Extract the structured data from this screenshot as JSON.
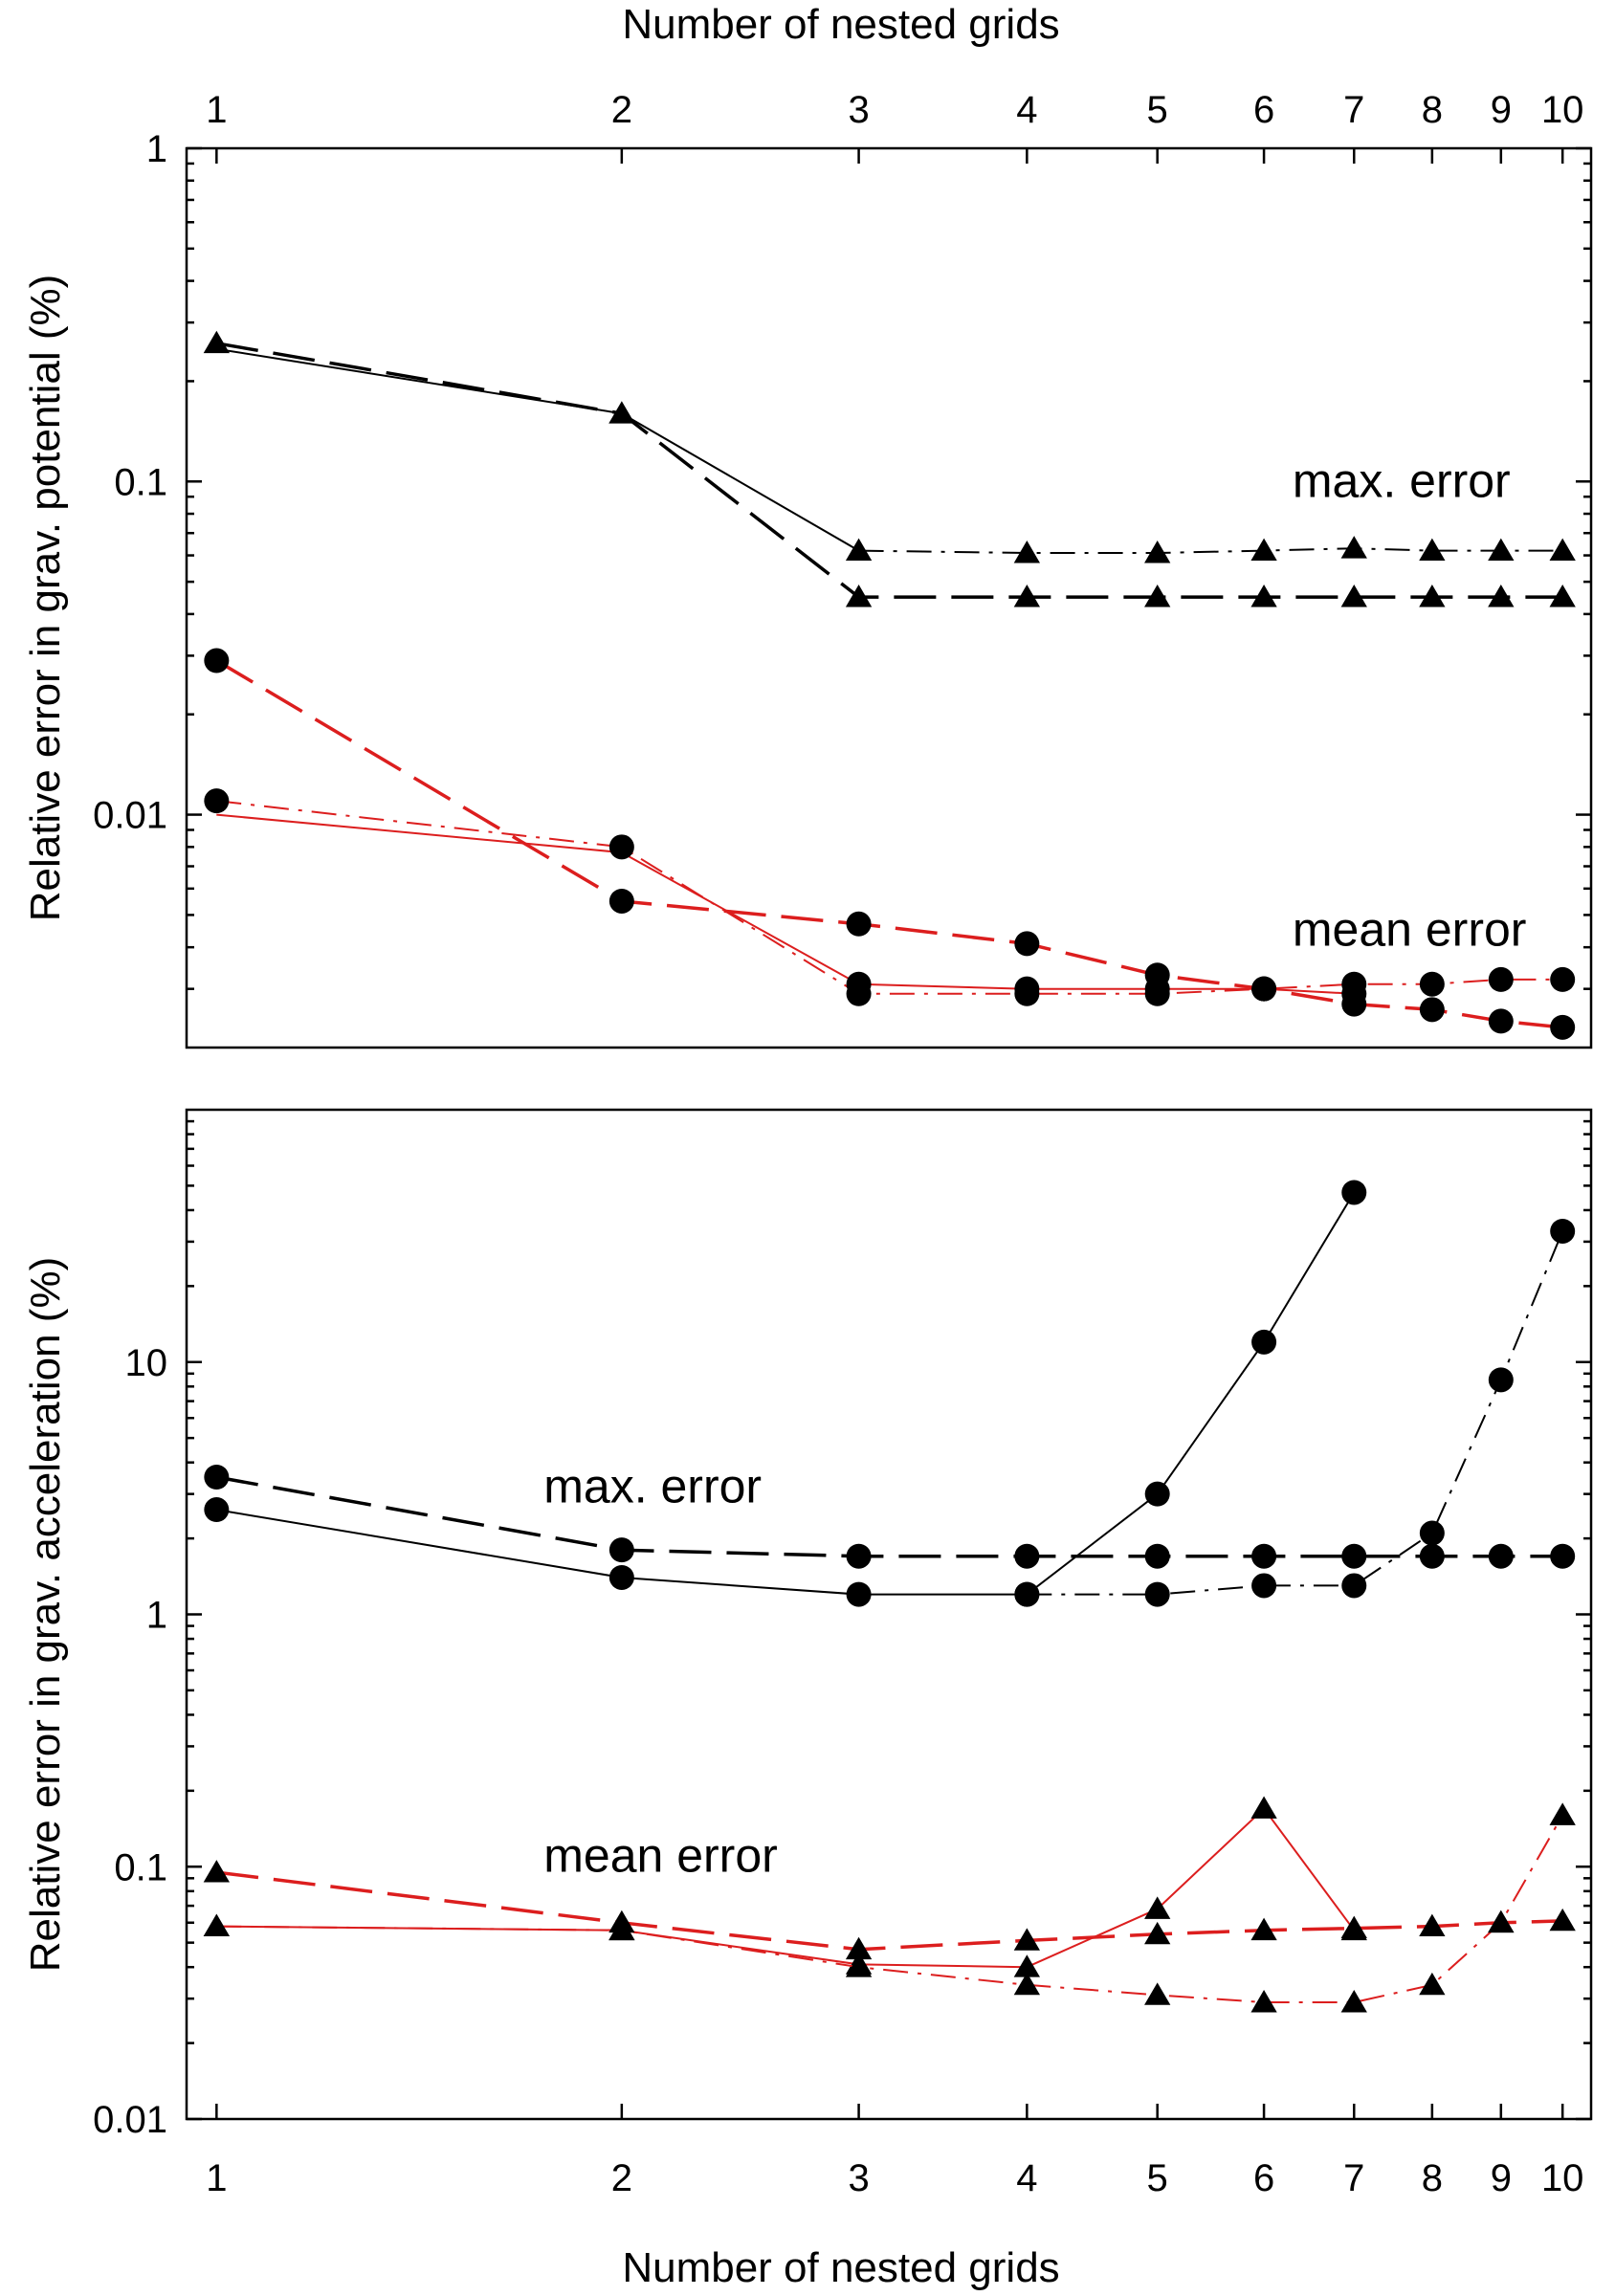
{
  "chart_data": [
    {
      "type": "line",
      "xscale": "log",
      "yscale": "log",
      "x": [
        1,
        2,
        3,
        4,
        5,
        6,
        7,
        8,
        9,
        10
      ],
      "xlim": [
        0.95,
        10.5
      ],
      "ylim": [
        0.002,
        1
      ],
      "xlabel": "Number of nested grids",
      "xlabel_position": "top",
      "ylabel": "Relative error in grav. potential (%)",
      "x_tick_labels": [
        "1",
        "2",
        "3",
        "4",
        "5",
        "6",
        "7",
        "8",
        "9",
        "10"
      ],
      "y_ticks": [
        0.01,
        0.1,
        1
      ],
      "y_tick_labels": [
        "0.01",
        "0.1",
        "1"
      ],
      "grid": false,
      "annotations": [
        {
          "text": "max. error",
          "x": 6.3,
          "y": 0.1
        },
        {
          "text": "mean error",
          "x": 6.3,
          "y": 0.0045
        }
      ],
      "series": [
        {
          "color": "#000000",
          "dash": "solid",
          "width": 2,
          "marker": "none",
          "x": [
            1,
            2,
            3
          ],
          "values": [
            0.25,
            0.16,
            0.062
          ]
        },
        {
          "color": "#000000",
          "dash": "dashdot",
          "width": 2,
          "marker": "triangle",
          "x": [
            3,
            4,
            5,
            6,
            7,
            8,
            9,
            10
          ],
          "values": [
            0.062,
            0.061,
            0.061,
            0.062,
            0.063,
            0.062,
            0.062,
            0.062
          ]
        },
        {
          "color": "#000000",
          "dash": "long-dash",
          "width": 3.5,
          "marker": "triangle",
          "x": [
            1,
            2,
            3,
            4,
            5,
            6,
            7,
            8,
            9,
            10
          ],
          "values": [
            0.26,
            0.16,
            0.045,
            0.045,
            0.045,
            0.045,
            0.045,
            0.045,
            0.045,
            0.045
          ]
        },
        {
          "color": "#dc1e1e",
          "dash": "solid",
          "width": 2,
          "marker": "none",
          "x": [
            1,
            2,
            3
          ],
          "values": [
            0.01,
            0.0077,
            0.0031
          ]
        },
        {
          "color": "#dc1e1e",
          "dash": "dashdot",
          "width": 2,
          "marker": "circle",
          "x": [
            1,
            2,
            3,
            4,
            5,
            6,
            7,
            8,
            9,
            10
          ],
          "values": [
            0.011,
            0.008,
            0.0029,
            0.0029,
            0.0029,
            0.003,
            0.0031,
            0.0031,
            0.0032,
            0.0032
          ]
        },
        {
          "color": "#dc1e1e",
          "dash": "solid",
          "width": 2,
          "marker": "circle",
          "x": [
            3,
            4,
            5,
            6,
            7
          ],
          "values": [
            0.0031,
            0.003,
            0.003,
            0.003,
            0.0029
          ]
        },
        {
          "color": "#dc1e1e",
          "dash": "long-dash",
          "width": 3.5,
          "marker": "circle",
          "x": [
            1,
            2,
            3,
            4,
            5,
            6,
            7,
            8,
            9,
            10
          ],
          "values": [
            0.029,
            0.0055,
            0.0047,
            0.0041,
            0.0033,
            0.003,
            0.0027,
            0.0026,
            0.0024,
            0.0023
          ]
        }
      ]
    },
    {
      "type": "line",
      "xscale": "log",
      "yscale": "log",
      "x": [
        1,
        2,
        3,
        4,
        5,
        6,
        7,
        8,
        9,
        10
      ],
      "xlim": [
        0.95,
        10.5
      ],
      "ylim": [
        0.01,
        100
      ],
      "xlabel": "Number of nested grids",
      "xlabel_position": "bottom",
      "ylabel": "Relative error in grav. acceleration (%)",
      "x_tick_labels": [
        "1",
        "2",
        "3",
        "4",
        "5",
        "6",
        "7",
        "8",
        "9",
        "10"
      ],
      "y_ticks": [
        0.01,
        0.1,
        1,
        10
      ],
      "y_tick_labels": [
        "0.01",
        "0.1",
        "1",
        "10"
      ],
      "grid": false,
      "annotations": [
        {
          "text": "max. error",
          "x": 1.75,
          "y": 3.2
        },
        {
          "text": "mean error",
          "x": 1.75,
          "y": 0.11
        }
      ],
      "series": [
        {
          "color": "#000000",
          "dash": "solid",
          "width": 2,
          "marker": "circle",
          "x": [
            1,
            2,
            3,
            4,
            5,
            6,
            7
          ],
          "values": [
            2.6,
            1.4,
            1.2,
            1.2,
            3.0,
            12,
            47
          ]
        },
        {
          "color": "#000000",
          "dash": "dashdot",
          "width": 2,
          "marker": "circle",
          "x": [
            4,
            5,
            6,
            7,
            8,
            9,
            10
          ],
          "values": [
            1.2,
            1.2,
            1.3,
            1.3,
            2.1,
            8.5,
            33
          ]
        },
        {
          "color": "#000000",
          "dash": "long-dash",
          "width": 3.5,
          "marker": "circle",
          "x": [
            1,
            2,
            3,
            4,
            5,
            6,
            7,
            8,
            9,
            10
          ],
          "values": [
            3.5,
            1.8,
            1.7,
            1.7,
            1.7,
            1.7,
            1.7,
            1.7,
            1.7,
            1.7
          ]
        },
        {
          "color": "#dc1e1e",
          "dash": "solid",
          "width": 2,
          "marker": "triangle",
          "x": [
            1,
            2,
            3,
            4,
            5,
            6,
            7
          ],
          "values": [
            0.058,
            0.056,
            0.041,
            0.04,
            0.068,
            0.17,
            0.056
          ]
        },
        {
          "color": "#dc1e1e",
          "dash": "dashdot",
          "width": 2,
          "marker": "triangle",
          "x": [
            1,
            2,
            3,
            4,
            5,
            6,
            7,
            8,
            9,
            10
          ],
          "values": [
            0.058,
            0.056,
            0.04,
            0.034,
            0.031,
            0.029,
            0.029,
            0.034,
            0.06,
            0.16
          ]
        },
        {
          "color": "#dc1e1e",
          "dash": "long-dash",
          "width": 3.5,
          "marker": "triangle",
          "x": [
            1,
            2,
            3,
            4,
            5,
            6,
            7,
            8,
            9,
            10
          ],
          "values": [
            0.095,
            0.06,
            0.047,
            0.051,
            0.054,
            0.056,
            0.057,
            0.058,
            0.06,
            0.061
          ]
        }
      ]
    }
  ]
}
